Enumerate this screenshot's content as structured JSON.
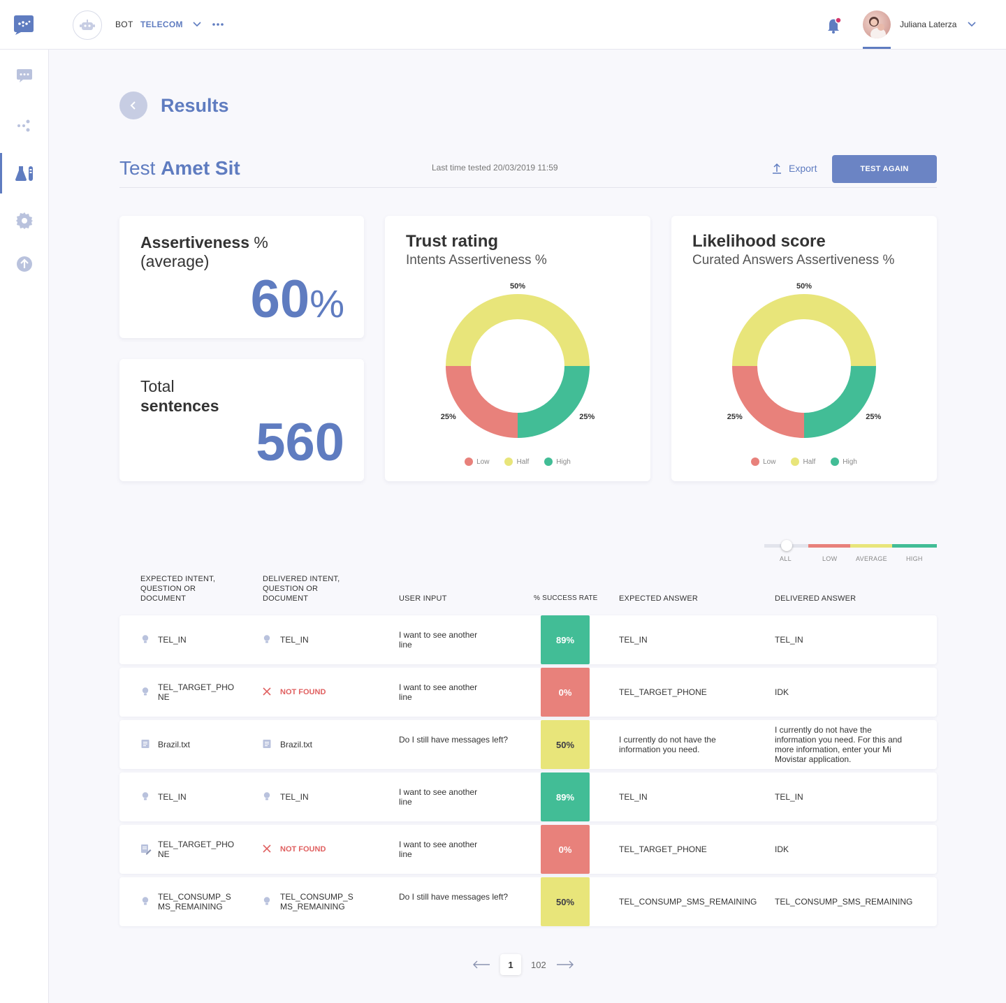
{
  "header": {
    "bot_label": "BOT",
    "bot_name": "TELECOM",
    "user_name": "Juliana Laterza"
  },
  "page": {
    "title": "Results",
    "test_prefix": "Test ",
    "test_name": "Amet Sit",
    "last_tested": "Last time tested 20/03/2019 11:59",
    "export_label": "Export",
    "test_again_label": "TEST AGAIN"
  },
  "cards": {
    "assertiveness": {
      "label_strong": "Assertiveness",
      "label_pct": " %",
      "label_sub": "(average)",
      "value": "60",
      "unit": "%"
    },
    "sentences": {
      "label_light": "Total",
      "label_strong": "sentences",
      "value": "560"
    }
  },
  "chart_data": [
    {
      "type": "pie",
      "title": "Trust rating",
      "subtitle": "Intents Assertiveness %",
      "slices": [
        {
          "label": "Half",
          "value": 50,
          "display": "50%",
          "color": "#e8e57a"
        },
        {
          "label": "High",
          "value": 25,
          "display": "25%",
          "color": "#42bd96"
        },
        {
          "label": "Low",
          "value": 25,
          "display": "25%",
          "color": "#e8817b"
        }
      ],
      "legend": [
        "Low",
        "Half",
        "High"
      ]
    },
    {
      "type": "pie",
      "title": "Likelihood score",
      "subtitle": "Curated Answers Assertiveness %",
      "slices": [
        {
          "label": "Half",
          "value": 50,
          "display": "50%",
          "color": "#e8e57a"
        },
        {
          "label": "High",
          "value": 25,
          "display": "25%",
          "color": "#42bd96"
        },
        {
          "label": "Low",
          "value": 25,
          "display": "25%",
          "color": "#e8817b"
        }
      ],
      "legend": [
        "Low",
        "Half",
        "High"
      ]
    }
  ],
  "filter": {
    "labels": [
      "ALL",
      "LOW",
      "AVERAGE",
      "HIGH"
    ],
    "selected": "ALL"
  },
  "table": {
    "headers": {
      "expected": "EXPECTED INTENT,\nQUESTION OR\nDOCUMENT",
      "delivered": "DELIVERED INTENT,\nQUESTION OR\nDOCUMENT",
      "input": "USER INPUT",
      "rate": "% SUCCESS RATE",
      "expected_answer": "EXPECTED ANSWER",
      "delivered_answer": "DELIVERED ANSWER"
    },
    "rows": [
      {
        "expected": "TEL_IN",
        "expected_icon": "bulb-icon",
        "delivered": "TEL_IN",
        "delivered_icon": "bulb-icon",
        "input": "I want to see another\nline",
        "rate": "89%",
        "level": "high",
        "expected_answer": "TEL_IN",
        "delivered_answer": "TEL_IN"
      },
      {
        "expected": "TEL_TARGET_PHO\nNE",
        "expected_icon": "bulb-icon",
        "delivered": "NOT FOUND",
        "delivered_icon": "x-icon",
        "input": "I want to see another\nline",
        "rate": "0%",
        "level": "low",
        "expected_answer": "TEL_TARGET_PHONE",
        "delivered_answer": "IDK"
      },
      {
        "expected": "Brazil.txt",
        "expected_icon": "document-icon",
        "delivered": "Brazil.txt",
        "delivered_icon": "document-icon",
        "input": "Do I still have messages left?",
        "rate": "50%",
        "level": "average",
        "expected_answer": "I currently do not have the\ninformation you need.",
        "delivered_answer": "I currently do not have the\ninformation you need. For this and\nmore information, enter your Mi\nMovistar application."
      },
      {
        "expected": "TEL_IN",
        "expected_icon": "bulb-icon",
        "delivered": "TEL_IN",
        "delivered_icon": "bulb-icon",
        "input": "I want to see another\nline",
        "rate": "89%",
        "level": "high",
        "expected_answer": "TEL_IN",
        "delivered_answer": "TEL_IN"
      },
      {
        "expected": "TEL_TARGET_PHO\nNE",
        "expected_icon": "edit-document-icon",
        "delivered": "NOT FOUND",
        "delivered_icon": "x-icon",
        "input": "I want to see another\nline",
        "rate": "0%",
        "level": "low",
        "expected_answer": "TEL_TARGET_PHONE",
        "delivered_answer": "IDK"
      },
      {
        "expected": "TEL_CONSUMP_S\nMS_REMAINING",
        "expected_icon": "bulb-icon",
        "delivered": "TEL_CONSUMP_S\nMS_REMAINING",
        "delivered_icon": "bulb-icon",
        "input": "Do I still have messages left?",
        "rate": "50%",
        "level": "average",
        "expected_answer": "TEL_CONSUMP_SMS_REMAINING",
        "delivered_answer": "TEL_CONSUMP_SMS_REMAINING"
      }
    ]
  },
  "pagination": {
    "current": "1",
    "total": "102"
  },
  "colors": {
    "accent": "#5f7cc0",
    "high": "#42bd96",
    "average": "#e8e57a",
    "low": "#e8817b"
  }
}
